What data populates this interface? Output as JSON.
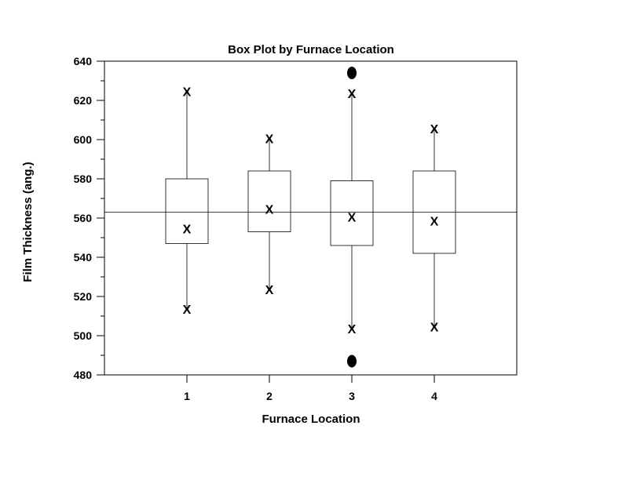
{
  "chart_data": {
    "type": "box",
    "title": "Box Plot by Furnace Location",
    "xlabel": "Furnace Location",
    "ylabel": "Film Thickness (ang.)",
    "ylim": [
      480,
      640
    ],
    "yticks": [
      480,
      500,
      520,
      540,
      560,
      580,
      600,
      620,
      640
    ],
    "xlim": [
      0,
      5
    ],
    "categories": [
      "1",
      "2",
      "3",
      "4"
    ],
    "grand_mean": 563,
    "median_marker": "X",
    "boxes": [
      {
        "category": "1",
        "min": 514,
        "q1": 547,
        "median": 555,
        "q3": 580,
        "max": 625,
        "outliers": []
      },
      {
        "category": "2",
        "min": 524,
        "q1": 553,
        "median": 565,
        "q3": 584,
        "max": 601,
        "outliers": []
      },
      {
        "category": "3",
        "min": 504,
        "q1": 546,
        "median": 561,
        "q3": 579,
        "max": 624,
        "outliers": [
          634,
          487
        ]
      },
      {
        "category": "4",
        "min": 505,
        "q1": 542,
        "median": 559,
        "q3": 584,
        "max": 606,
        "outliers": []
      }
    ]
  }
}
